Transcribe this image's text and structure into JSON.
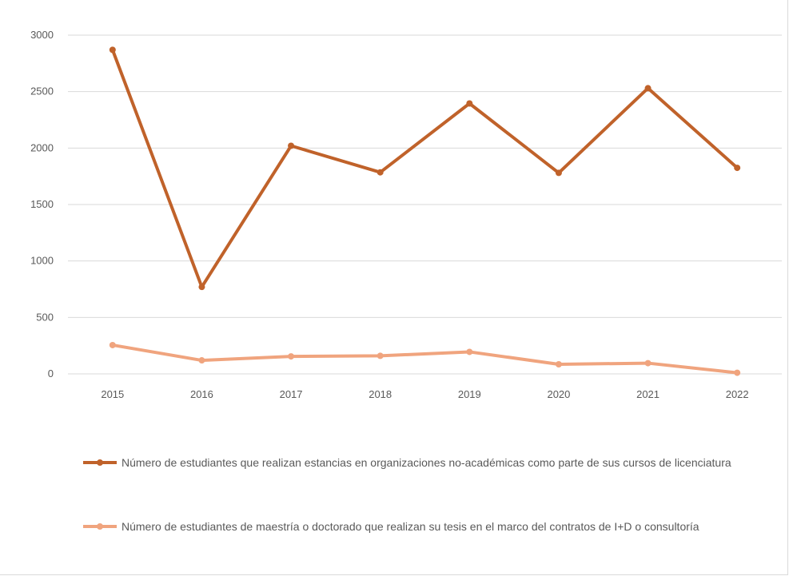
{
  "chart_data": {
    "type": "line",
    "x": [
      "2015",
      "2016",
      "2017",
      "2018",
      "2019",
      "2020",
      "2021",
      "2022"
    ],
    "ylim": [
      0,
      3000
    ],
    "yticks": [
      "0",
      "500",
      "1000",
      "1500",
      "2000",
      "2500",
      "3000"
    ],
    "grid": true,
    "legend_position": "bottom",
    "series": [
      {
        "name": "Número de estudiantes que realizan estancias en organizaciones no-académicas como parte de sus cursos de licenciatura",
        "values": [
          2870,
          770,
          2020,
          1785,
          2395,
          1780,
          2530,
          1825
        ],
        "color": "#c0622a"
      },
      {
        "name": "Número de estudiantes de maestría o doctorado que realizan su tesis en el marco del contratos de I+D o consultoría",
        "values": [
          255,
          120,
          155,
          160,
          195,
          85,
          95,
          10
        ],
        "color": "#f0a47e"
      }
    ]
  }
}
